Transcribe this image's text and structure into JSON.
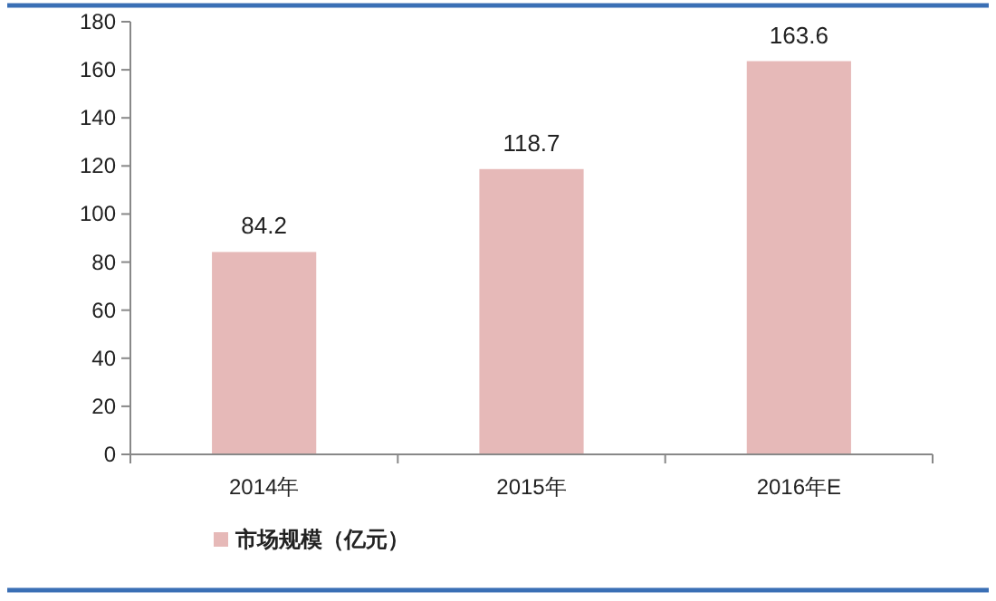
{
  "chart_data": {
    "type": "bar",
    "categories": [
      "2014年",
      "2015年",
      "2016年E"
    ],
    "series": [
      {
        "name": "市场规模（亿元）",
        "color": "#e6b9b8",
        "values": [
          84.2,
          118.7,
          163.6
        ]
      }
    ],
    "ylim": [
      0,
      180
    ],
    "yticks": [
      0,
      20,
      40,
      60,
      80,
      100,
      120,
      140,
      160,
      180
    ],
    "data_labels": true,
    "grid": false,
    "legend": "bottom"
  }
}
